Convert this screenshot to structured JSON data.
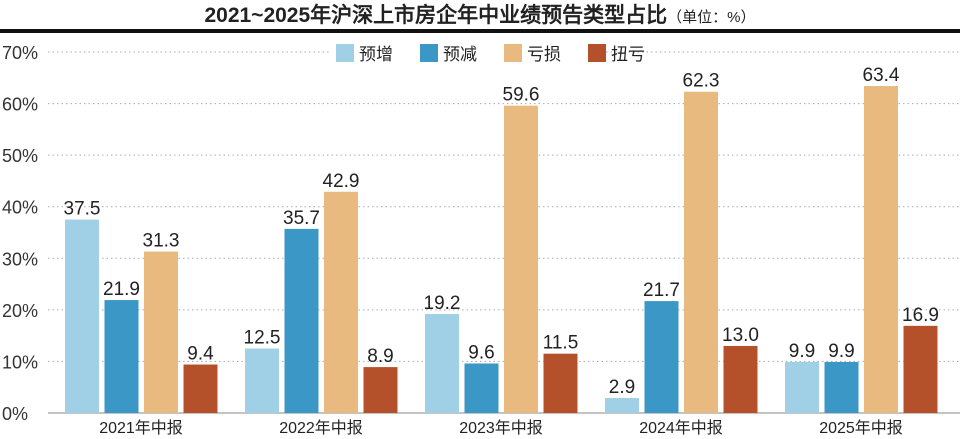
{
  "chart_data": {
    "type": "bar",
    "title": "2021~2025年沪深上市房企年中业绩预告类型占比",
    "unit_note": "（单位：%）",
    "categories": [
      "2021年中报",
      "2022年中报",
      "2023年中报",
      "2024年中报",
      "2025年中报"
    ],
    "series": [
      {
        "name": "预增",
        "color": "#9fd0e6",
        "values": [
          37.5,
          12.5,
          19.2,
          2.9,
          9.9
        ]
      },
      {
        "name": "预减",
        "color": "#3b97c6",
        "values": [
          21.9,
          35.7,
          9.6,
          21.7,
          9.9
        ]
      },
      {
        "name": "亏损",
        "color": "#e8ba80",
        "values": [
          31.3,
          42.9,
          59.6,
          62.3,
          63.4
        ]
      },
      {
        "name": "扭亏",
        "color": "#b5512a",
        "values": [
          9.4,
          8.9,
          11.5,
          13.0,
          16.9
        ]
      }
    ],
    "yticks": [
      "0%",
      "10%",
      "20%",
      "30%",
      "40%",
      "50%",
      "60%",
      "70%"
    ],
    "ylim": [
      0,
      70
    ],
    "xlabel": "",
    "ylabel": "",
    "grid": true,
    "legend": "top-center"
  }
}
